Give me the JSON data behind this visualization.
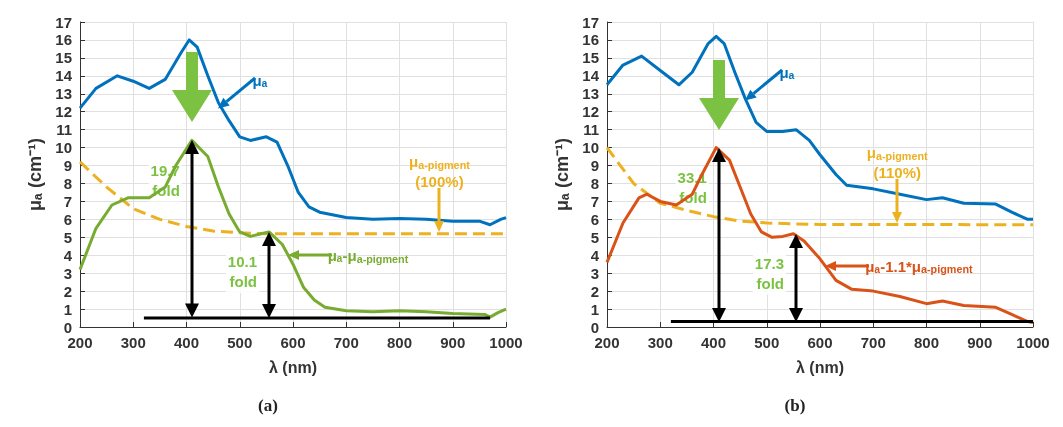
{
  "chart_data": [
    {
      "type": "line",
      "title": "(a)",
      "xlabel": "λ (nm)",
      "ylabel": "μₐ (cm⁻¹)",
      "xlim": [
        200,
        1000
      ],
      "xticks": [
        200,
        300,
        400,
        500,
        600,
        700,
        800,
        900,
        {
          "value": 1000,
          "label": "1000"
        }
      ],
      "ylim": [
        0,
        17
      ],
      "yticks": [
        0,
        1,
        2,
        3,
        4,
        5,
        6,
        7,
        8,
        9,
        10,
        11,
        12,
        13,
        14,
        15,
        16,
        17
      ],
      "grid": true,
      "series": [
        {
          "color": "#0072bd",
          "x": [
            200,
            230,
            270,
            300,
            330,
            360,
            390,
            405,
            420,
            440,
            460,
            480,
            500,
            520,
            550,
            570,
            590,
            610,
            630,
            650,
            700,
            750,
            800,
            850,
            900,
            950,
            970,
            990,
            1000
          ],
          "values": [
            12.2,
            13.3,
            14.0,
            13.7,
            13.3,
            13.8,
            15.3,
            16.0,
            15.6,
            14.0,
            12.5,
            11.5,
            10.6,
            10.4,
            10.6,
            10.3,
            9.0,
            7.5,
            6.7,
            6.4,
            6.1,
            6.0,
            6.05,
            6.0,
            5.9,
            5.9,
            5.7,
            6.0,
            6.1
          ]
        },
        {
          "color": "#edb120",
          "line_style": "dashed",
          "x": [
            200,
            250,
            300,
            350,
            400,
            450,
            500,
            550,
            600,
            1000
          ],
          "values": [
            9.2,
            7.8,
            6.6,
            6.0,
            5.6,
            5.35,
            5.25,
            5.2,
            5.2,
            5.2
          ]
        },
        {
          "color": "#77ac30",
          "x": [
            200,
            230,
            260,
            290,
            330,
            360,
            380,
            410,
            440,
            460,
            480,
            500,
            520,
            540,
            555,
            580,
            600,
            620,
            640,
            660,
            700,
            750,
            800,
            850,
            900,
            960,
            970,
            985,
            1000
          ],
          "values": [
            3.2,
            5.5,
            6.8,
            7.2,
            7.2,
            7.8,
            9.0,
            10.4,
            9.5,
            7.8,
            6.3,
            5.3,
            5.05,
            5.2,
            5.3,
            4.6,
            3.5,
            2.2,
            1.5,
            1.1,
            0.9,
            0.85,
            0.9,
            0.85,
            0.75,
            0.7,
            0.55,
            0.8,
            1.0
          ]
        },
        {
          "color": "#000000",
          "x": [
            320,
            970
          ],
          "values": [
            0.5,
            0.5
          ]
        }
      ],
      "annotations": [
        {
          "text": "μₐ",
          "x": 460,
          "y": 12.2
        },
        {
          "text": "μ$_{a-pigment}$\n(100%)",
          "x": 875,
          "y": 5.3
        },
        {
          "text": "μₐ-μ$_{a-pigment}$",
          "x": 590,
          "y": 4.0
        },
        {
          "text": "19.7\nfold",
          "x": 410,
          "y": 10.4
        },
        {
          "text": "10.1\nfold",
          "x": 555,
          "y": 5.3
        }
      ]
    },
    {
      "type": "line",
      "title": "(b)",
      "xlabel": "λ (nm)",
      "ylabel": "μₐ (cm⁻¹)",
      "xlim": [
        200,
        1000
      ],
      "xticks": [
        200,
        300,
        400,
        500,
        600,
        700,
        800,
        900,
        {
          "value": 1000,
          "label": "1000"
        }
      ],
      "ylim": [
        0,
        17
      ],
      "yticks": [
        0,
        1,
        2,
        3,
        4,
        5,
        6,
        7,
        8,
        9,
        10,
        11,
        12,
        13,
        14,
        15,
        16,
        17
      ],
      "grid": true,
      "series": [
        {
          "color": "#0072bd",
          "x": [
            200,
            230,
            265,
            300,
            335,
            360,
            390,
            405,
            420,
            440,
            460,
            480,
            500,
            530,
            555,
            580,
            600,
            630,
            650,
            700,
            750,
            800,
            830,
            870,
            930,
            960,
            990,
            1000
          ],
          "values": [
            13.5,
            14.6,
            15.1,
            14.3,
            13.5,
            14.2,
            15.8,
            16.2,
            15.8,
            14.2,
            12.7,
            11.4,
            10.9,
            10.9,
            11.0,
            10.4,
            9.6,
            8.5,
            7.9,
            7.7,
            7.4,
            7.1,
            7.2,
            6.9,
            6.85,
            6.4,
            6.0,
            6.0
          ]
        },
        {
          "color": "#edb120",
          "line_style": "dashed",
          "x": [
            200,
            250,
            300,
            350,
            400,
            450,
            500,
            550,
            600,
            1000
          ],
          "values": [
            10.0,
            8.0,
            6.9,
            6.5,
            6.15,
            5.9,
            5.8,
            5.75,
            5.72,
            5.7
          ]
        },
        {
          "color": "#d95319",
          "x": [
            200,
            230,
            260,
            275,
            300,
            330,
            360,
            380,
            405,
            430,
            450,
            470,
            490,
            510,
            530,
            550,
            570,
            600,
            630,
            660,
            700,
            750,
            800,
            830,
            870,
            930,
            960,
            990,
            1000
          ],
          "values": [
            3.6,
            5.8,
            7.2,
            7.4,
            7.0,
            6.8,
            7.4,
            8.6,
            10.0,
            9.3,
            7.8,
            6.3,
            5.3,
            5.0,
            5.05,
            5.2,
            4.8,
            3.8,
            2.6,
            2.1,
            2.0,
            1.7,
            1.3,
            1.45,
            1.2,
            1.1,
            0.7,
            0.3,
            0.25
          ]
        },
        {
          "color": "#000000",
          "x": [
            320,
            1000
          ],
          "values": [
            0.3,
            0.3
          ]
        }
      ],
      "annotations": [
        {
          "text": "μₐ",
          "x": 460,
          "y": 12.6
        },
        {
          "text": "μ$_{a-pigment}$\n(110%)",
          "x": 745,
          "y": 5.8
        },
        {
          "text": "μₐ-1.1*μ$_{a-pigment}$",
          "x": 610,
          "y": 3.4
        },
        {
          "text": "33.1\nfold",
          "x": 410,
          "y": 10.0
        },
        {
          "text": "17.3\nfold",
          "x": 555,
          "y": 5.2
        }
      ]
    }
  ]
}
